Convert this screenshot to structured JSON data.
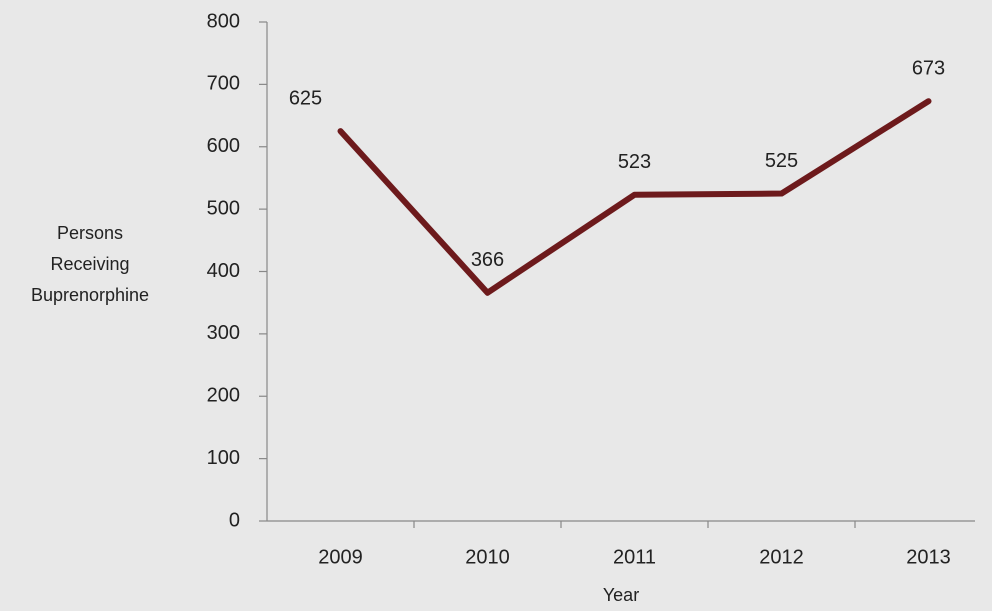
{
  "chart_data": {
    "type": "line",
    "categories": [
      "2009",
      "2010",
      "2011",
      "2012",
      "2013"
    ],
    "series": [
      {
        "name": "Persons Receiving Buprenorphine",
        "color": "#6d1a1c",
        "values": [
          625,
          366,
          523,
          525,
          673
        ]
      }
    ],
    "x_label": "Year",
    "y_label": "Persons Receiving Buprenorphine",
    "ylim": [
      0,
      800
    ],
    "yticks": [
      0,
      100,
      200,
      300,
      400,
      500,
      600,
      700,
      800
    ]
  }
}
